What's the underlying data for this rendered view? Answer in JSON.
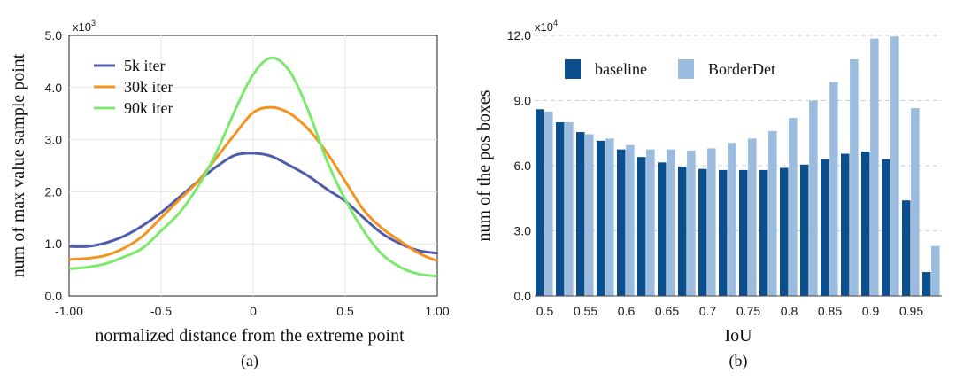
{
  "chart_data": [
    {
      "type": "line",
      "caption": "(a)",
      "xlabel": "normalized distance from the extreme point",
      "ylabel": "num of  max value sample point",
      "y_multiplier": "x10",
      "y_multiplier_exp": "3",
      "xlim": [
        -1.0,
        1.0
      ],
      "ylim": [
        0.0,
        5.0
      ],
      "x_tick_labels": [
        "-1.00",
        "-0.5",
        "0",
        "0.5",
        "1.00"
      ],
      "x_ticks": [
        -1.0,
        -0.5,
        0.0,
        0.5,
        1.0
      ],
      "y_tick_labels": [
        "0.0",
        "1.0",
        "2.0",
        "3.0",
        "4.0",
        "5.0"
      ],
      "y_ticks": [
        0,
        1,
        2,
        3,
        4,
        5
      ],
      "series": [
        {
          "name": "5k iter",
          "color": "#4f5bab",
          "x": [
            -1.0,
            -0.9,
            -0.8,
            -0.7,
            -0.6,
            -0.5,
            -0.4,
            -0.3,
            -0.2,
            -0.1,
            0.0,
            0.1,
            0.2,
            0.3,
            0.4,
            0.5,
            0.6,
            0.7,
            0.8,
            0.9,
            1.0
          ],
          "y": [
            0.95,
            0.95,
            1.02,
            1.15,
            1.35,
            1.6,
            1.9,
            2.2,
            2.48,
            2.7,
            2.74,
            2.68,
            2.5,
            2.3,
            2.05,
            1.82,
            1.5,
            1.2,
            1.0,
            0.87,
            0.82
          ]
        },
        {
          "name": "30k iter",
          "color": "#f5931e",
          "x": [
            -1.0,
            -0.9,
            -0.8,
            -0.7,
            -0.6,
            -0.5,
            -0.4,
            -0.3,
            -0.2,
            -0.1,
            0.0,
            0.1,
            0.2,
            0.3,
            0.4,
            0.5,
            0.6,
            0.7,
            0.8,
            0.9,
            1.0
          ],
          "y": [
            0.7,
            0.72,
            0.78,
            0.92,
            1.15,
            1.5,
            1.85,
            2.2,
            2.65,
            3.1,
            3.52,
            3.62,
            3.5,
            3.2,
            2.75,
            2.2,
            1.65,
            1.3,
            1.05,
            0.82,
            0.67
          ]
        },
        {
          "name": "90k iter",
          "color": "#7ce86d",
          "x": [
            -1.0,
            -0.9,
            -0.8,
            -0.7,
            -0.6,
            -0.5,
            -0.4,
            -0.3,
            -0.2,
            -0.1,
            0.0,
            0.1,
            0.2,
            0.3,
            0.4,
            0.5,
            0.6,
            0.7,
            0.8,
            0.9,
            1.0
          ],
          "y": [
            0.52,
            0.55,
            0.62,
            0.75,
            0.92,
            1.25,
            1.6,
            2.1,
            2.75,
            3.55,
            4.25,
            4.57,
            4.3,
            3.55,
            2.6,
            1.85,
            1.25,
            0.8,
            0.55,
            0.42,
            0.38
          ]
        }
      ]
    },
    {
      "type": "bar",
      "caption": "(b)",
      "xlabel": "IoU",
      "ylabel": "num of the pos boxes",
      "y_multiplier": "x10",
      "y_multiplier_exp": "4",
      "ylim": [
        0.0,
        12.0
      ],
      "y_tick_labels": [
        "0.0",
        "3.0",
        "6.0",
        "9.0",
        "12.0"
      ],
      "y_ticks": [
        0,
        3,
        6,
        9,
        12
      ],
      "x_tick_labels": [
        "0.5",
        "0.55",
        "0.6",
        "0.65",
        "0.7",
        "0.75",
        "0.8",
        "0.85",
        "0.9",
        "0.95"
      ],
      "x_tick_positions": [
        0,
        2,
        4,
        6,
        8,
        10,
        12,
        14,
        16,
        18
      ],
      "categories": [
        "0.500",
        "0.525",
        "0.550",
        "0.575",
        "0.600",
        "0.625",
        "0.650",
        "0.675",
        "0.700",
        "0.725",
        "0.750",
        "0.775",
        "0.800",
        "0.825",
        "0.850",
        "0.875",
        "0.900",
        "0.925",
        "0.950",
        "0.975"
      ],
      "series": [
        {
          "name": "baseline",
          "color": "#0b4f8e",
          "values": [
            8.6,
            8.0,
            7.55,
            7.15,
            6.75,
            6.4,
            6.15,
            5.95,
            5.85,
            5.8,
            5.8,
            5.8,
            5.9,
            6.05,
            6.3,
            6.55,
            6.65,
            6.3,
            4.4,
            1.1
          ]
        },
        {
          "name": "BorderDet",
          "color": "#9bbcde",
          "values": [
            8.5,
            8.0,
            7.45,
            7.25,
            6.95,
            6.75,
            6.75,
            6.7,
            6.8,
            7.05,
            7.25,
            7.6,
            8.2,
            9.0,
            9.85,
            10.9,
            11.85,
            11.95,
            8.65,
            2.3
          ]
        }
      ]
    }
  ]
}
